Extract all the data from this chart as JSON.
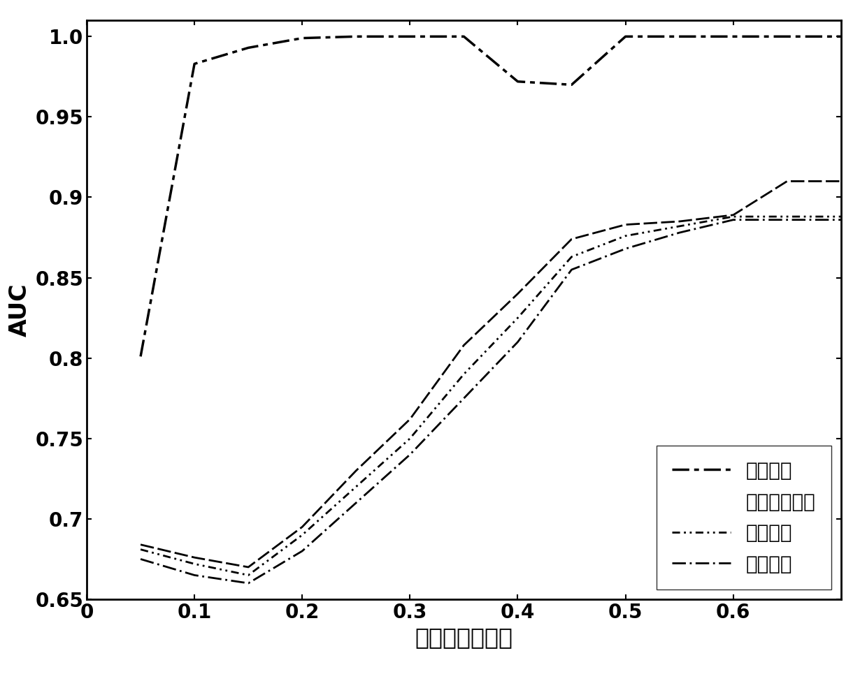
{
  "title": "",
  "xlabel": "故障后采样时间",
  "ylabel": "AUC",
  "xlim": [
    0,
    0.7
  ],
  "ylim": [
    0.65,
    1.01
  ],
  "xticks": [
    0,
    0.1,
    0.2,
    0.3,
    0.4,
    0.5,
    0.6
  ],
  "yticks": [
    0.65,
    0.7,
    0.75,
    0.8,
    0.85,
    0.9,
    0.95,
    1.0
  ],
  "series": [
    {
      "label": "欧式距离",
      "x": [
        0.05,
        0.1,
        0.15,
        0.2,
        0.25,
        0.3,
        0.35,
        0.4,
        0.45,
        0.5,
        0.55,
        0.6,
        0.65,
        0.7
      ],
      "y": [
        0.801,
        0.983,
        0.993,
        0.999,
        1.0,
        1.0,
        1.0,
        0.972,
        0.97,
        1.0,
        1.0,
        1.0,
        1.0,
        1.0
      ]
    },
    {
      "label": "相关系数距离",
      "x": [
        0.05,
        0.1,
        0.15,
        0.2,
        0.25,
        0.3,
        0.35,
        0.4,
        0.45,
        0.5,
        0.55,
        0.6,
        0.65,
        0.7
      ],
      "y": [
        0.684,
        0.676,
        0.67,
        0.695,
        0.73,
        0.762,
        0.808,
        0.84,
        0.874,
        0.883,
        0.885,
        0.889,
        0.91,
        0.91
      ]
    },
    {
      "label": "余弦距离",
      "x": [
        0.05,
        0.1,
        0.15,
        0.2,
        0.25,
        0.3,
        0.35,
        0.4,
        0.45,
        0.5,
        0.55,
        0.6,
        0.65,
        0.7
      ],
      "y": [
        0.681,
        0.672,
        0.665,
        0.69,
        0.72,
        0.75,
        0.79,
        0.825,
        0.863,
        0.876,
        0.882,
        0.888,
        0.888,
        0.888
      ]
    },
    {
      "label": "马氏距离",
      "x": [
        0.05,
        0.1,
        0.15,
        0.2,
        0.25,
        0.3,
        0.35,
        0.4,
        0.45,
        0.5,
        0.55,
        0.6,
        0.65,
        0.7
      ],
      "y": [
        0.675,
        0.665,
        0.66,
        0.68,
        0.71,
        0.74,
        0.775,
        0.81,
        0.855,
        0.868,
        0.878,
        0.886,
        0.886,
        0.886
      ]
    }
  ],
  "font_size": 20,
  "label_fontsize": 24,
  "tick_fontsize": 20,
  "legend_fontsize": 20,
  "background_color": "#ffffff"
}
